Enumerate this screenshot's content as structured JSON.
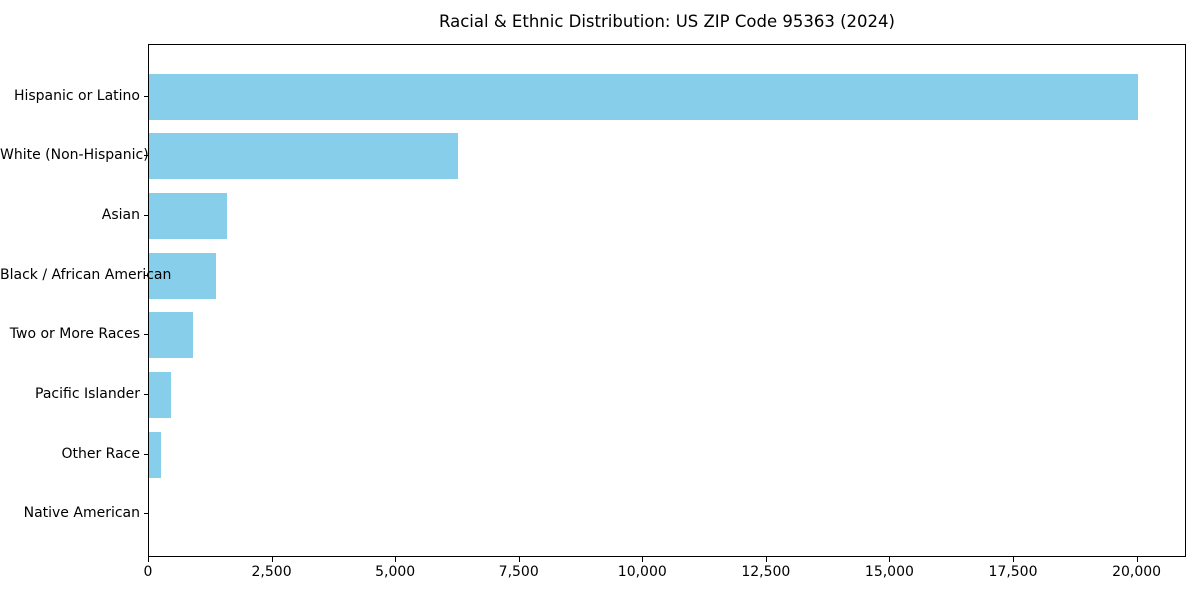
{
  "chart_data": {
    "type": "bar",
    "orientation": "horizontal",
    "title": "Racial & Ethnic Distribution: US ZIP Code 95363 (2024)",
    "categories": [
      "Hispanic or Latino",
      "White (Non-Hispanic)",
      "Asian",
      "Black / African American",
      "Two or More Races",
      "Pacific Islander",
      "Other Race",
      "Native American"
    ],
    "values": [
      20000,
      6250,
      1580,
      1350,
      890,
      450,
      240,
      0
    ],
    "xlabel": "",
    "ylabel": "",
    "xlim": [
      0,
      21000
    ],
    "x_ticks": [
      0,
      2500,
      5000,
      7500,
      10000,
      12500,
      15000,
      17500,
      20000
    ],
    "x_tick_labels": [
      "0",
      "2,500",
      "5,000",
      "7,500",
      "10,000",
      "12,500",
      "15,000",
      "17,500",
      "20,000"
    ],
    "bar_color": "#87CEEB",
    "grid": false,
    "legend": null
  }
}
